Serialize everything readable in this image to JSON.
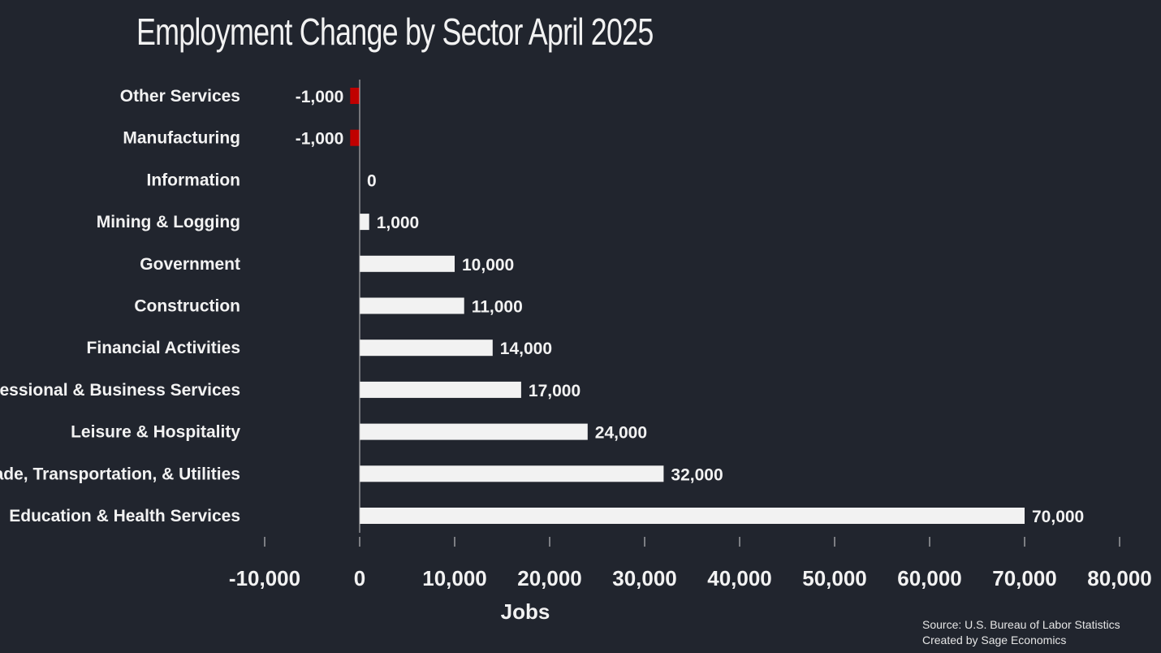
{
  "chart_data": {
    "type": "bar",
    "orientation": "horizontal",
    "title": "Employment Change by Sector April 2025",
    "xlabel": "Jobs",
    "ylabel": "",
    "xlim": [
      -10000,
      80000
    ],
    "ticks": [
      -10000,
      0,
      10000,
      20000,
      30000,
      40000,
      50000,
      60000,
      70000,
      80000
    ],
    "tick_labels": [
      "-10,000",
      "0",
      "10,000",
      "20,000",
      "30,000",
      "40,000",
      "50,000",
      "60,000",
      "70,000",
      "80,000"
    ],
    "categories": [
      "Other Services",
      "Manufacturing",
      "Information",
      "Mining & Logging",
      "Government",
      "Construction",
      "Financial Activities",
      "Professional & Business Services",
      "Leisure & Hospitality",
      "Trade, Transportation, & Utilities",
      "Education & Health Services"
    ],
    "values": [
      -1000,
      -1000,
      0,
      1000,
      10000,
      11000,
      14000,
      17000,
      24000,
      32000,
      70000
    ],
    "value_labels": [
      "-1,000",
      "-1,000",
      "0",
      "1,000",
      "10,000",
      "11,000",
      "14,000",
      "17,000",
      "24,000",
      "32,000",
      "70,000"
    ],
    "grid": false,
    "legend": "none",
    "colors": {
      "positive": "#f2f2f2",
      "negative": "#c00000",
      "background": "#21252e",
      "text": "#f2f2f2"
    }
  },
  "source": {
    "line1": "Source: U.S. Bureau of Labor Statistics",
    "line2": "Created by Sage Economics"
  }
}
